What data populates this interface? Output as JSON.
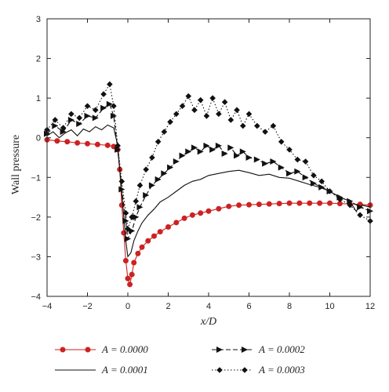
{
  "chart_data": {
    "type": "line",
    "xlabel": "x/D",
    "ylabel": "Wall pressure",
    "xlim": [
      -4,
      12
    ],
    "ylim": [
      -4,
      3
    ],
    "xticks": [
      -4,
      -2,
      0,
      2,
      4,
      6,
      8,
      10,
      12
    ],
    "yticks": [
      -4,
      -3,
      -2,
      -1,
      0,
      1,
      2,
      3
    ],
    "grid": false,
    "legend_position": "bottom",
    "series": [
      {
        "name": "A = 0.0000",
        "color": "#cc2222",
        "style": "solid-circle-markers",
        "x": [
          -4,
          -3.5,
          -3,
          -2.5,
          -2,
          -1.5,
          -1,
          -0.7,
          -0.5,
          -0.4,
          -0.3,
          -0.2,
          -0.1,
          0,
          0.1,
          0.2,
          0.3,
          0.5,
          0.7,
          1,
          1.3,
          1.6,
          2,
          2.4,
          2.8,
          3.2,
          3.6,
          4,
          4.5,
          5,
          5.5,
          6,
          6.5,
          7,
          7.5,
          8,
          8.5,
          9,
          9.5,
          10,
          10.5,
          11,
          11.5,
          12
        ],
        "y": [
          -0.05,
          -0.08,
          -0.1,
          -0.13,
          -0.15,
          -0.17,
          -0.19,
          -0.22,
          -0.3,
          -0.8,
          -1.7,
          -2.4,
          -3.1,
          -3.55,
          -3.7,
          -3.45,
          -3.15,
          -2.92,
          -2.76,
          -2.6,
          -2.48,
          -2.37,
          -2.25,
          -2.14,
          -2.03,
          -1.95,
          -1.9,
          -1.85,
          -1.79,
          -1.73,
          -1.7,
          -1.69,
          -1.68,
          -1.67,
          -1.66,
          -1.65,
          -1.65,
          -1.65,
          -1.65,
          -1.65,
          -1.66,
          -1.67,
          -1.68,
          -1.7
        ]
      },
      {
        "name": "A = 0.0001",
        "color": "#111111",
        "style": "solid",
        "x": [
          -4,
          -3.7,
          -3.4,
          -3.1,
          -2.8,
          -2.5,
          -2.2,
          -1.9,
          -1.6,
          -1.3,
          -1.0,
          -0.7,
          -0.5,
          -0.3,
          -0.1,
          0,
          0.15,
          0.3,
          0.5,
          0.7,
          1.0,
          1.3,
          1.6,
          2.0,
          2.4,
          2.8,
          3.2,
          3.6,
          4.0,
          4.5,
          5.0,
          5.5,
          6.0,
          6.5,
          7.0,
          7.5,
          8.0,
          8.5,
          9.0,
          9.5,
          10.0,
          10.5,
          11.0,
          11.3,
          11.6,
          12
        ],
        "y": [
          0.05,
          0.15,
          0.0,
          0.12,
          0.2,
          0.05,
          0.22,
          0.15,
          0.28,
          0.2,
          0.32,
          0.25,
          -0.2,
          -1.4,
          -2.6,
          -3.0,
          -2.9,
          -2.6,
          -2.35,
          -2.15,
          -1.95,
          -1.8,
          -1.62,
          -1.5,
          -1.35,
          -1.2,
          -1.1,
          -1.05,
          -0.95,
          -0.9,
          -0.85,
          -0.82,
          -0.88,
          -0.95,
          -0.92,
          -1.0,
          -1.02,
          -1.1,
          -1.18,
          -1.25,
          -1.35,
          -1.5,
          -1.6,
          -1.85,
          -1.7,
          -1.75
        ]
      },
      {
        "name": "A = 0.0002",
        "color": "#111111",
        "style": "dashed-triangle-markers",
        "x": [
          -4,
          -3.6,
          -3.2,
          -2.8,
          -2.4,
          -2.0,
          -1.6,
          -1.2,
          -0.9,
          -0.7,
          -0.5,
          -0.3,
          -0.1,
          0,
          0.2,
          0.4,
          0.6,
          0.9,
          1.2,
          1.5,
          1.8,
          2.1,
          2.4,
          2.7,
          3.0,
          3.3,
          3.6,
          3.9,
          4.2,
          4.5,
          4.8,
          5.1,
          5.4,
          5.7,
          6.0,
          6.4,
          6.8,
          7.2,
          7.6,
          8.0,
          8.4,
          8.8,
          9.2,
          9.6,
          10.0,
          10.5,
          11.0,
          11.5,
          12
        ],
        "y": [
          0.1,
          0.3,
          0.15,
          0.45,
          0.35,
          0.55,
          0.5,
          0.75,
          0.85,
          0.55,
          -0.3,
          -1.3,
          -2.1,
          -2.55,
          -2.35,
          -2.0,
          -1.75,
          -1.45,
          -1.2,
          -1.05,
          -0.9,
          -0.75,
          -0.6,
          -0.45,
          -0.35,
          -0.25,
          -0.35,
          -0.2,
          -0.3,
          -0.2,
          -0.4,
          -0.25,
          -0.45,
          -0.35,
          -0.5,
          -0.55,
          -0.65,
          -0.6,
          -0.75,
          -0.9,
          -0.85,
          -1.0,
          -1.15,
          -1.25,
          -1.35,
          -1.5,
          -1.6,
          -1.75,
          -1.85
        ]
      },
      {
        "name": "A = 0.0003",
        "color": "#111111",
        "style": "dotted-diamond-markers",
        "x": [
          -4,
          -3.6,
          -3.2,
          -2.8,
          -2.4,
          -2.0,
          -1.6,
          -1.2,
          -0.9,
          -0.7,
          -0.5,
          -0.3,
          -0.1,
          0,
          0.2,
          0.4,
          0.6,
          0.9,
          1.2,
          1.5,
          1.8,
          2.1,
          2.4,
          2.7,
          3.0,
          3.3,
          3.6,
          3.9,
          4.2,
          4.5,
          4.8,
          5.1,
          5.4,
          5.7,
          6.0,
          6.4,
          6.8,
          7.2,
          7.6,
          8.0,
          8.4,
          8.8,
          9.2,
          9.6,
          10.0,
          10.5,
          11.0,
          11.5,
          12
        ],
        "y": [
          0.2,
          0.45,
          0.25,
          0.6,
          0.5,
          0.8,
          0.7,
          1.1,
          1.35,
          0.8,
          -0.2,
          -1.1,
          -1.9,
          -2.3,
          -2.0,
          -1.6,
          -1.2,
          -0.8,
          -0.5,
          -0.1,
          0.15,
          0.4,
          0.6,
          0.8,
          1.05,
          0.7,
          0.95,
          0.55,
          1.0,
          0.6,
          0.9,
          0.45,
          0.7,
          0.3,
          0.6,
          0.3,
          0.15,
          0.3,
          -0.1,
          -0.3,
          -0.55,
          -0.6,
          -0.95,
          -1.1,
          -1.35,
          -1.55,
          -1.7,
          -1.95,
          -2.1
        ]
      }
    ]
  }
}
